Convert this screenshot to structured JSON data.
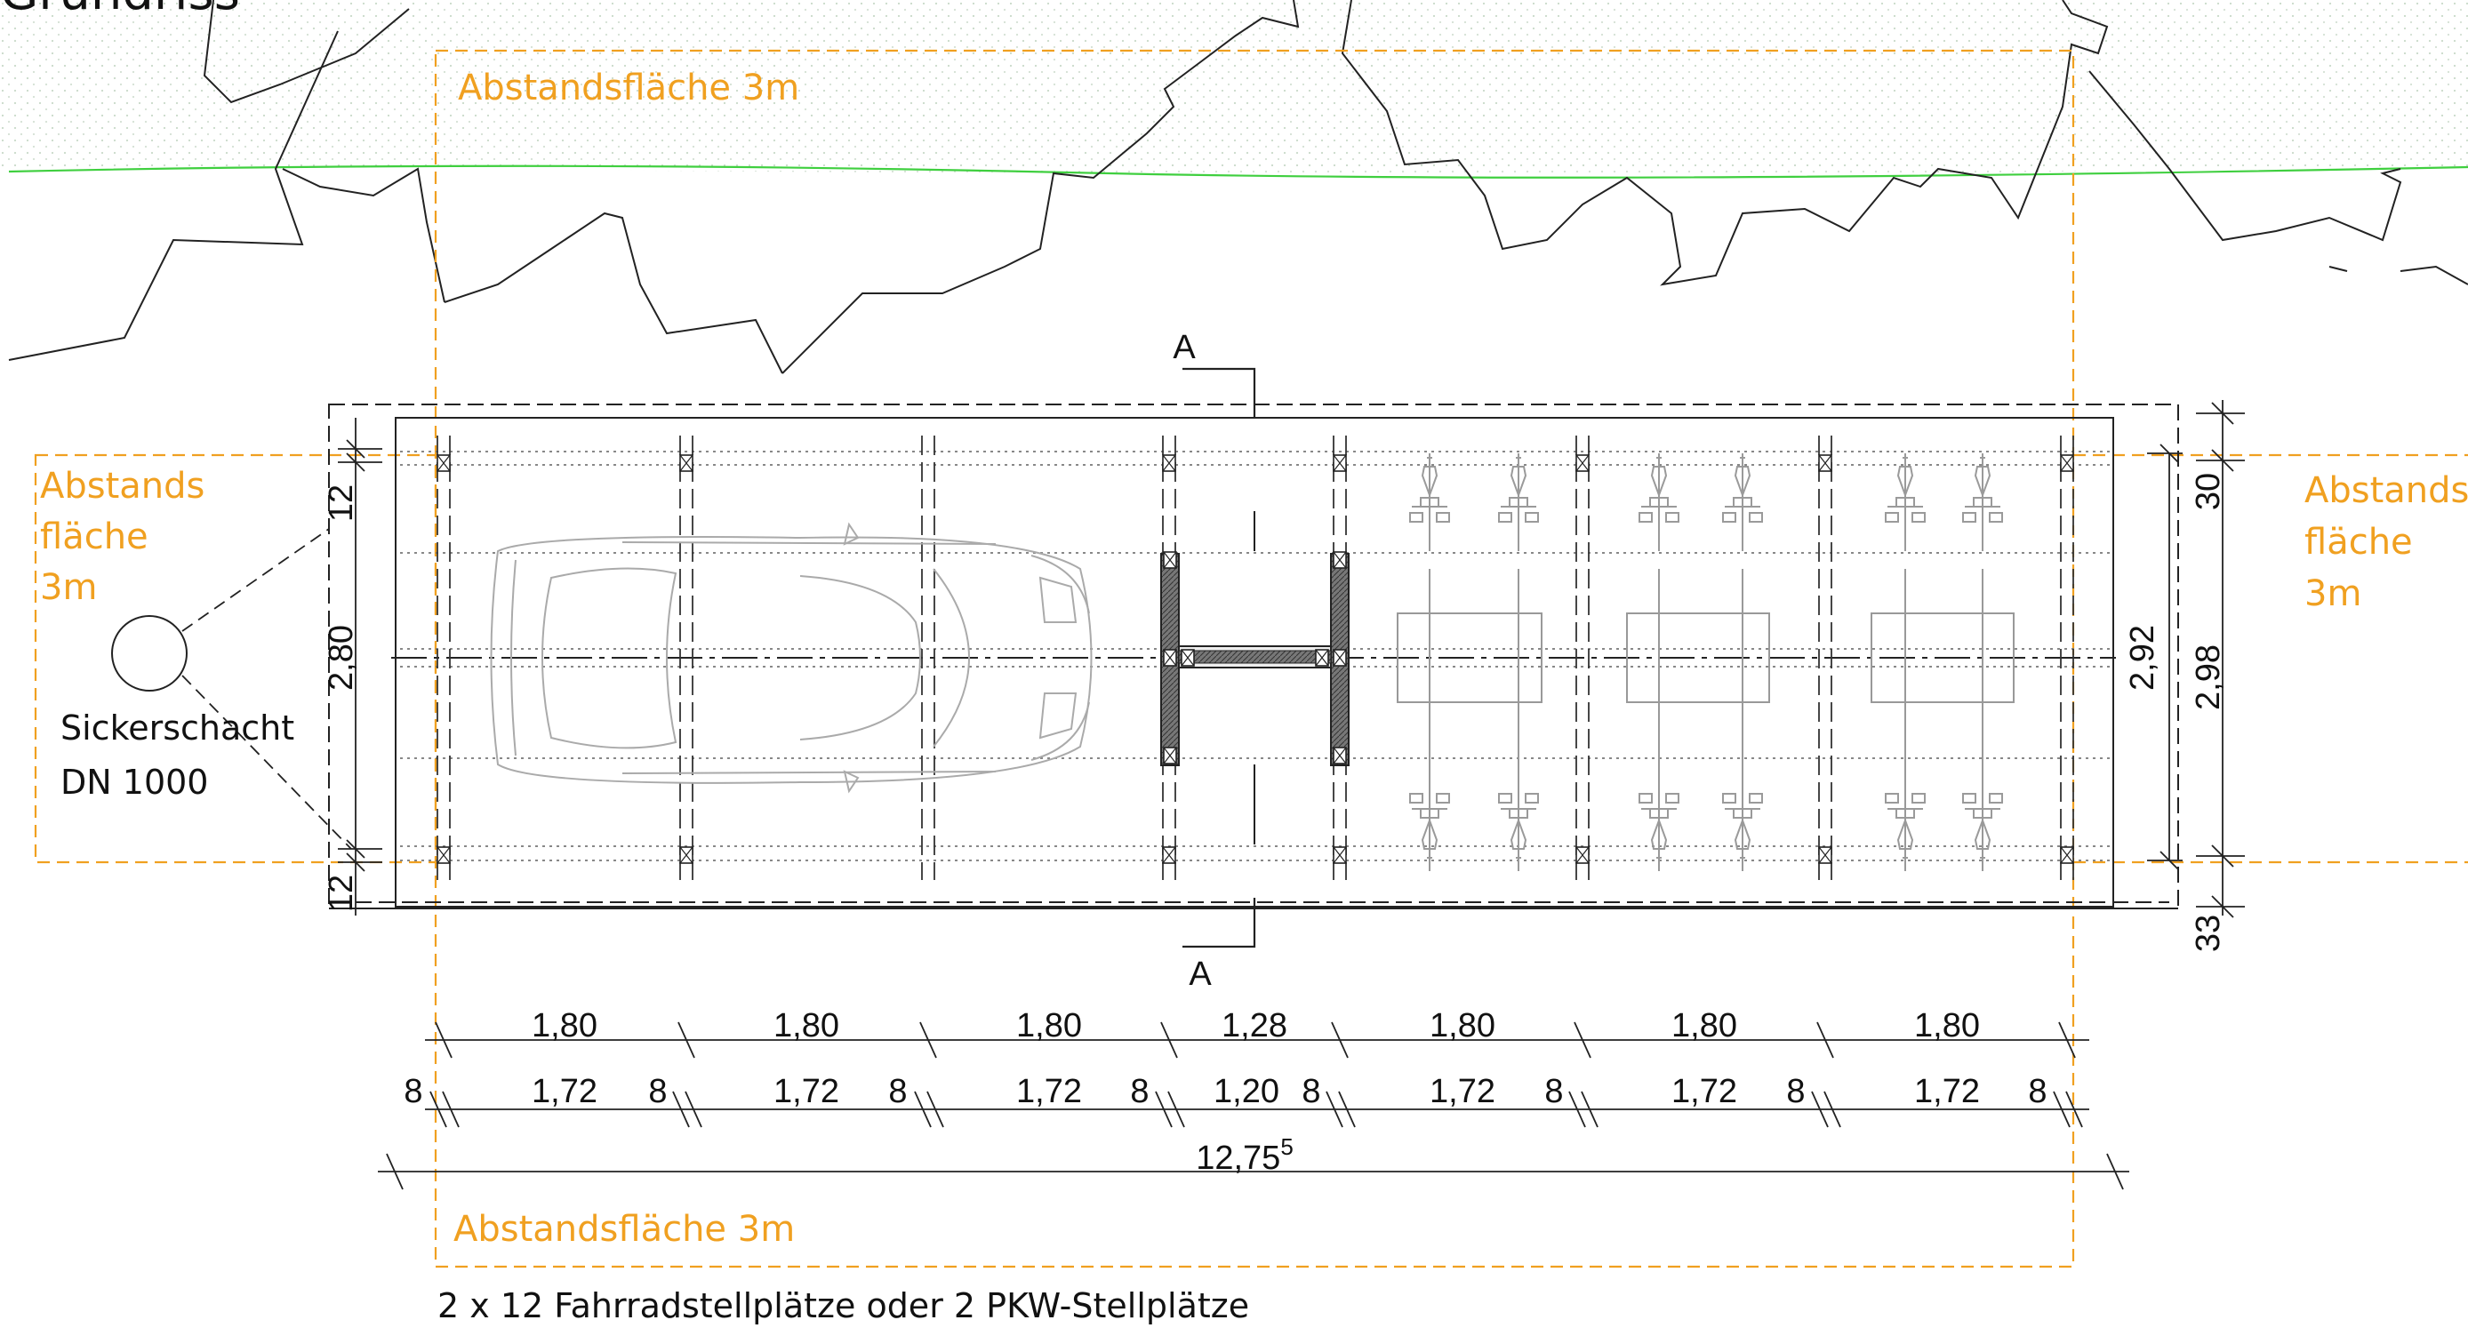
{
  "title": "Grundriss",
  "section_marker": "A",
  "spacing_labels": {
    "top": "Abstandsfläche 3m",
    "bottom": "Abstandsfläche 3m",
    "left": [
      "Abstands",
      "fläche",
      "3m"
    ],
    "right": [
      "Abstands",
      "fläche",
      "3m"
    ]
  },
  "shaft": {
    "line1": "Sickerschacht",
    "line2": "DN 1000"
  },
  "dims_bays": [
    "1,80",
    "1,80",
    "1,80",
    "1,28",
    "1,80",
    "1,80",
    "1,80"
  ],
  "dims_clear": [
    "1,72",
    "1,72",
    "1,72",
    "1,20",
    "1,72",
    "1,72",
    "1,72"
  ],
  "dims_posts": [
    "8",
    "8",
    "8",
    "8",
    "8",
    "8",
    "8",
    "8"
  ],
  "dim_total": {
    "value": "12,75",
    "sup": "5"
  },
  "dims_left": {
    "top": "12",
    "middle": "2,80",
    "bottom": "12"
  },
  "dims_right_inner": "2,92",
  "dims_right_outer": {
    "top": "30",
    "middle": "2,98",
    "bottom": "33"
  },
  "caption": "2 x 12 Fahrradstellplätze oder 2 PKW-Stellplätze",
  "colors": {
    "spacing_area": "#f0a020",
    "boundary_line": "#3fcf3f",
    "linework": "#222222",
    "hatch": "#c8d8c8"
  }
}
